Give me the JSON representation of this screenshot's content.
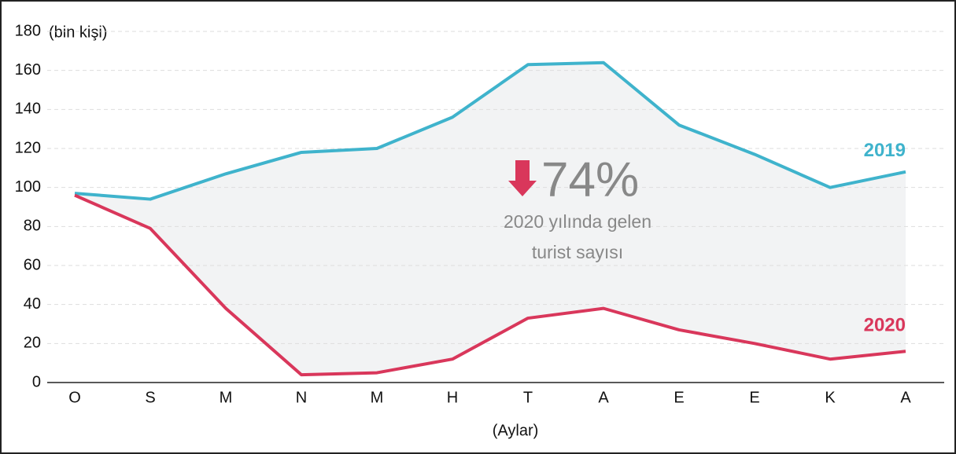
{
  "chart_data": {
    "type": "line",
    "y_label": "(bin kişi)",
    "x_label": "(Aylar)",
    "categories": [
      "O",
      "S",
      "M",
      "N",
      "M",
      "H",
      "T",
      "A",
      "E",
      "E",
      "K",
      "A"
    ],
    "series": [
      {
        "name": "2019",
        "color": "#3fb3cc",
        "values": [
          97,
          94,
          107,
          118,
          120,
          136,
          163,
          164,
          132,
          117,
          100,
          108
        ]
      },
      {
        "name": "2020",
        "color": "#d9375b",
        "values": [
          96,
          79,
          38,
          4,
          5,
          12,
          33,
          38,
          27,
          20,
          12,
          16
        ]
      }
    ],
    "ylim": [
      0,
      180
    ],
    "yticks": [
      0,
      20,
      40,
      60,
      80,
      100,
      120,
      140,
      160,
      180
    ],
    "grid": true,
    "area_color": "#f2f3f4",
    "annotation": {
      "value": "74%",
      "text_1": "2020 yılında gelen",
      "text_2": "turist sayısı",
      "arrow_color": "#d9375b"
    }
  }
}
